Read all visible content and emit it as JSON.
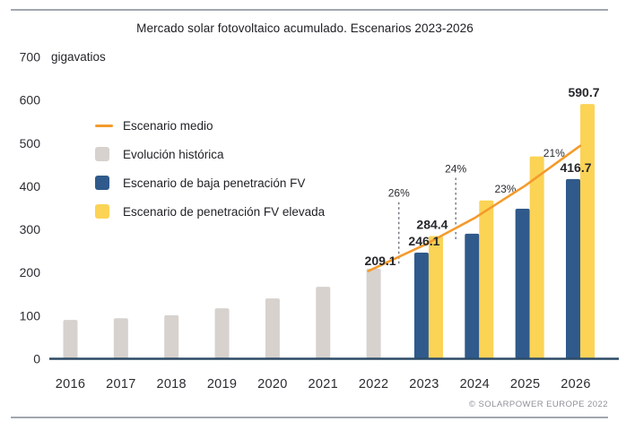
{
  "page": {
    "title": "Mercado solar fotovoltaico acumulado. Escenarios 2023-2026",
    "footer": "© SOLARPOWER EUROPE 2022"
  },
  "colors": {
    "historical_bar": "#D7D2CE",
    "low_scenario_bar": "#2F5A8B",
    "high_scenario_bar": "#FBD355",
    "medium_scenario_line": "#F39B2C",
    "axis_line": "#2C4A66",
    "border_rule": "#A2A7AF",
    "text_dark": "#26272B",
    "footer_text": "#8E9197"
  },
  "legend": [
    {
      "label": "Escenario medio",
      "swatch": "line",
      "color": "#F39B2C"
    },
    {
      "label": "Evolución histórica",
      "swatch": "square",
      "color": "#D7D2CE"
    },
    {
      "label": "Escenario de baja penetración FV",
      "swatch": "square",
      "color": "#2F5A8B"
    },
    {
      "label": "Escenario de penetración FV elevada",
      "swatch": "square",
      "color": "#FBD355"
    }
  ],
  "chart_data": {
    "type": "bar",
    "title": "Mercado solar fotovoltaico acumulado. Escenarios 2023-2026",
    "unit_label": "gigavatios",
    "ylabel": "gigavatios",
    "ylim": [
      0,
      700
    ],
    "yticks": [
      0,
      100,
      200,
      300,
      400,
      500,
      600,
      700
    ],
    "grid": false,
    "legend_position": "upper-left-inside",
    "years": [
      2016,
      2017,
      2018,
      2019,
      2020,
      2021,
      2022,
      2023,
      2024,
      2025,
      2026
    ],
    "series": [
      {
        "name": "Evolución histórica",
        "type": "bar",
        "color": "#D7D2CE",
        "years": [
          2016,
          2017,
          2018,
          2019,
          2020,
          2021,
          2022
        ],
        "values": [
          90,
          94,
          101,
          117,
          140,
          167,
          209.1
        ]
      },
      {
        "name": "Escenario de baja penetración FV",
        "type": "bar",
        "color": "#2F5A8B",
        "years": [
          2023,
          2024,
          2025,
          2026
        ],
        "values": [
          246.1,
          290,
          348,
          416.7
        ]
      },
      {
        "name": "Escenario de penetración FV elevada",
        "type": "bar",
        "color": "#FBD355",
        "years": [
          2023,
          2024,
          2025,
          2026
        ],
        "values": [
          284.4,
          367,
          469,
          590.7
        ]
      },
      {
        "name": "Escenario medio",
        "type": "line",
        "color": "#F39B2C",
        "years": [
          2022,
          2023,
          2024,
          2025,
          2026
        ],
        "values": [
          209.1,
          263.5,
          326.5,
          401.5,
          486.3
        ]
      }
    ],
    "value_labels": [
      {
        "text": "209.1",
        "year": 2022,
        "series": 0,
        "placement": "left-of-top"
      },
      {
        "text": "246.1",
        "year": 2023,
        "series": 1,
        "placement": "above"
      },
      {
        "text": "284.4",
        "year": 2023,
        "series": 2,
        "placement": "above"
      },
      {
        "text": "416.7",
        "year": 2026,
        "series": 1,
        "placement": "above"
      },
      {
        "text": "590.7",
        "year": 2026,
        "series": 2,
        "placement": "above"
      }
    ],
    "growth_labels": [
      {
        "text": "26%",
        "from_year": 2022,
        "to_year": 2023,
        "dashed_connector": true
      },
      {
        "text": "24%",
        "from_year": 2023,
        "to_year": 2024,
        "dashed_connector": true
      },
      {
        "text": "23%",
        "from_year": 2024,
        "to_year": 2025,
        "dashed_connector": false
      },
      {
        "text": "21%",
        "from_year": 2025,
        "to_year": 2026,
        "dashed_connector": false
      }
    ]
  }
}
